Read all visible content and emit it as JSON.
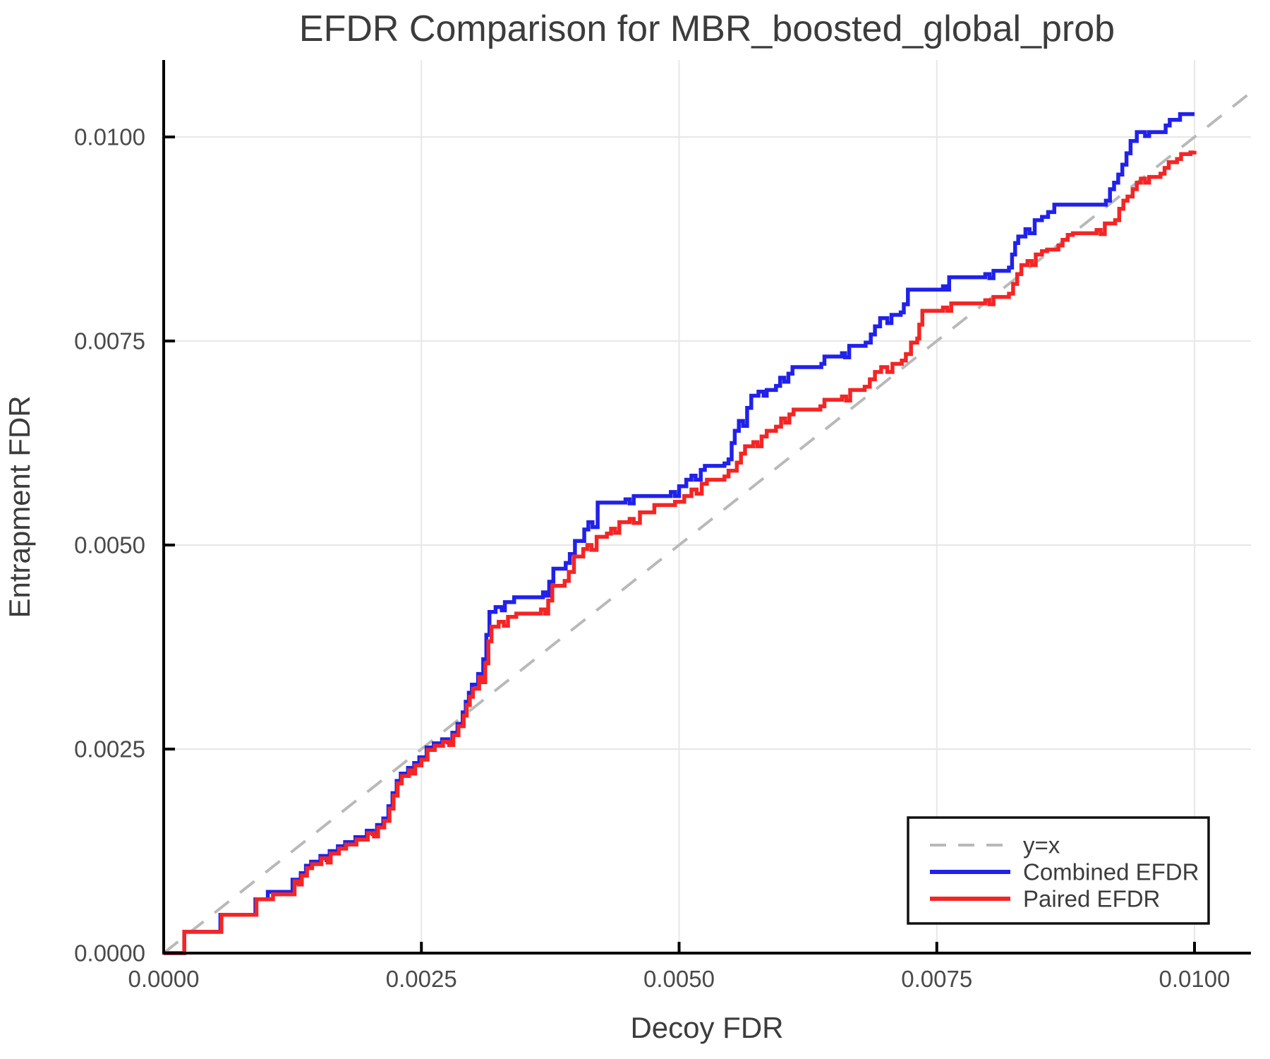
{
  "chart_data": {
    "type": "line",
    "title": "EFDR Comparison for MBR_boosted_global_prob",
    "xlabel": "Decoy FDR",
    "ylabel": "Entrapment FDR",
    "xlim": [
      0,
      0.01055
    ],
    "ylim": [
      0,
      0.01095
    ],
    "grid": true,
    "legend_position": "bottom-right",
    "x_ticks": {
      "values": [
        0,
        0.0025,
        0.005,
        0.0075,
        0.01
      ],
      "labels": [
        "0.0000",
        "0.0025",
        "0.0050",
        "0.0075",
        "0.0100"
      ]
    },
    "y_ticks": {
      "values": [
        0,
        0.0025,
        0.005,
        0.0075,
        0.01
      ],
      "labels": [
        "0.0000",
        "0.0025",
        "0.0050",
        "0.0075",
        "0.0100"
      ]
    },
    "series": [
      {
        "name": "y=x",
        "color": "#b9b9b9",
        "style": "dashed",
        "step": false,
        "points": [
          [
            0,
            0
          ],
          [
            0.01052,
            0.01052
          ]
        ]
      },
      {
        "name": "Combined EFDR",
        "color": "#2121eb",
        "style": "solid",
        "step": true,
        "points": [
          [
            0.0,
            0.0
          ],
          [
            0.0002,
            0.00026
          ],
          [
            0.00055,
            0.00047
          ],
          [
            0.00089,
            0.00066
          ],
          [
            0.00101,
            0.00075
          ],
          [
            0.00125,
            0.0009
          ],
          [
            0.0013,
            0.00086
          ],
          [
            0.00133,
            0.00098
          ],
          [
            0.00138,
            0.00107
          ],
          [
            0.00143,
            0.00112
          ],
          [
            0.00152,
            0.00119
          ],
          [
            0.00158,
            0.00114
          ],
          [
            0.00161,
            0.00125
          ],
          [
            0.00169,
            0.00131
          ],
          [
            0.00176,
            0.00136
          ],
          [
            0.00186,
            0.00142
          ],
          [
            0.00197,
            0.0015
          ],
          [
            0.00203,
            0.00146
          ],
          [
            0.00207,
            0.00157
          ],
          [
            0.00213,
            0.00165
          ],
          [
            0.00218,
            0.0018
          ],
          [
            0.00222,
            0.00196
          ],
          [
            0.00226,
            0.00211
          ],
          [
            0.0023,
            0.0022
          ],
          [
            0.00237,
            0.00227
          ],
          [
            0.0024,
            0.00223
          ],
          [
            0.00243,
            0.00233
          ],
          [
            0.00248,
            0.0024
          ],
          [
            0.00255,
            0.00252
          ],
          [
            0.00262,
            0.00257
          ],
          [
            0.0027,
            0.00262
          ],
          [
            0.00276,
            0.00258
          ],
          [
            0.0028,
            0.0027
          ],
          [
            0.00285,
            0.00281
          ],
          [
            0.0029,
            0.00295
          ],
          [
            0.00293,
            0.00308
          ],
          [
            0.00296,
            0.00319
          ],
          [
            0.00299,
            0.00329
          ],
          [
            0.00305,
            0.00342
          ],
          [
            0.00308,
            0.00336
          ],
          [
            0.0031,
            0.0036
          ],
          [
            0.00313,
            0.0039
          ],
          [
            0.00316,
            0.00418
          ],
          [
            0.00322,
            0.00424
          ],
          [
            0.00328,
            0.0042
          ],
          [
            0.00331,
            0.0043
          ],
          [
            0.0034,
            0.00436
          ],
          [
            0.00368,
            0.00442
          ],
          [
            0.00371,
            0.00438
          ],
          [
            0.00374,
            0.00455
          ],
          [
            0.00378,
            0.00471
          ],
          [
            0.0039,
            0.00478
          ],
          [
            0.00394,
            0.00489
          ],
          [
            0.00399,
            0.00505
          ],
          [
            0.00408,
            0.00519
          ],
          [
            0.00412,
            0.00528
          ],
          [
            0.00416,
            0.00522
          ],
          [
            0.00421,
            0.00552
          ],
          [
            0.00448,
            0.00556
          ],
          [
            0.00452,
            0.00551
          ],
          [
            0.00456,
            0.0056
          ],
          [
            0.00492,
            0.00565
          ],
          [
            0.00496,
            0.0056
          ],
          [
            0.005,
            0.00572
          ],
          [
            0.00507,
            0.0058
          ],
          [
            0.00512,
            0.00585
          ],
          [
            0.00516,
            0.0058
          ],
          [
            0.00521,
            0.00592
          ],
          [
            0.00525,
            0.00597
          ],
          [
            0.00544,
            0.006
          ],
          [
            0.00548,
            0.00605
          ],
          [
            0.00551,
            0.00625
          ],
          [
            0.00554,
            0.0064
          ],
          [
            0.00558,
            0.00652
          ],
          [
            0.00562,
            0.00646
          ],
          [
            0.00566,
            0.00668
          ],
          [
            0.0057,
            0.00683
          ],
          [
            0.00577,
            0.00688
          ],
          [
            0.00582,
            0.00683
          ],
          [
            0.00585,
            0.0069
          ],
          [
            0.00594,
            0.00695
          ],
          [
            0.00598,
            0.00705
          ],
          [
            0.00602,
            0.007
          ],
          [
            0.00606,
            0.0071
          ],
          [
            0.0061,
            0.00718
          ],
          [
            0.00638,
            0.00722
          ],
          [
            0.00641,
            0.00731
          ],
          [
            0.00658,
            0.00735
          ],
          [
            0.00661,
            0.0073
          ],
          [
            0.00665,
            0.00744
          ],
          [
            0.00681,
            0.00748
          ],
          [
            0.00686,
            0.00758
          ],
          [
            0.0069,
            0.00768
          ],
          [
            0.00695,
            0.00778
          ],
          [
            0.00702,
            0.00772
          ],
          [
            0.00706,
            0.00782
          ],
          [
            0.00715,
            0.00785
          ],
          [
            0.00718,
            0.00795
          ],
          [
            0.00722,
            0.00813
          ],
          [
            0.00756,
            0.00817
          ],
          [
            0.00759,
            0.00813
          ],
          [
            0.00762,
            0.00828
          ],
          [
            0.00797,
            0.00832
          ],
          [
            0.00801,
            0.00827
          ],
          [
            0.00805,
            0.00836
          ],
          [
            0.0082,
            0.0084
          ],
          [
            0.00823,
            0.00856
          ],
          [
            0.00826,
            0.0087
          ],
          [
            0.00829,
            0.00878
          ],
          [
            0.00836,
            0.00887
          ],
          [
            0.0084,
            0.00882
          ],
          [
            0.00845,
            0.00898
          ],
          [
            0.00852,
            0.00902
          ],
          [
            0.00858,
            0.00908
          ],
          [
            0.00864,
            0.00917
          ],
          [
            0.00914,
            0.00922
          ],
          [
            0.00918,
            0.00936
          ],
          [
            0.00922,
            0.00944
          ],
          [
            0.00926,
            0.00954
          ],
          [
            0.0093,
            0.00966
          ],
          [
            0.00934,
            0.0098
          ],
          [
            0.00938,
            0.00995
          ],
          [
            0.00944,
            0.01006
          ],
          [
            0.00952,
            0.01001
          ],
          [
            0.00956,
            0.01006
          ],
          [
            0.00972,
            0.01014
          ],
          [
            0.00976,
            0.01021
          ],
          [
            0.00986,
            0.01028
          ],
          [
            0.01,
            0.01028
          ]
        ]
      },
      {
        "name": "Paired EFDR",
        "color": "#f42525",
        "style": "solid",
        "step": true,
        "points": [
          [
            0.0,
            0.0
          ],
          [
            0.0002,
            0.00026
          ],
          [
            0.00056,
            0.00047
          ],
          [
            0.0009,
            0.00066
          ],
          [
            0.00106,
            0.00072
          ],
          [
            0.00127,
            0.00088
          ],
          [
            0.00131,
            0.00084
          ],
          [
            0.00134,
            0.00095
          ],
          [
            0.00139,
            0.00104
          ],
          [
            0.00144,
            0.00109
          ],
          [
            0.00153,
            0.00116
          ],
          [
            0.00159,
            0.00111
          ],
          [
            0.00162,
            0.00122
          ],
          [
            0.0017,
            0.00128
          ],
          [
            0.00177,
            0.00133
          ],
          [
            0.00187,
            0.00139
          ],
          [
            0.00198,
            0.00147
          ],
          [
            0.00204,
            0.00143
          ],
          [
            0.00208,
            0.00154
          ],
          [
            0.00214,
            0.00162
          ],
          [
            0.00219,
            0.00177
          ],
          [
            0.00223,
            0.00193
          ],
          [
            0.00227,
            0.00208
          ],
          [
            0.00231,
            0.00217
          ],
          [
            0.00238,
            0.00224
          ],
          [
            0.00241,
            0.0022
          ],
          [
            0.00244,
            0.0023
          ],
          [
            0.0025,
            0.00237
          ],
          [
            0.00256,
            0.00249
          ],
          [
            0.00263,
            0.00254
          ],
          [
            0.00271,
            0.00259
          ],
          [
            0.00277,
            0.00255
          ],
          [
            0.00281,
            0.00267
          ],
          [
            0.00286,
            0.00278
          ],
          [
            0.00291,
            0.00291
          ],
          [
            0.00294,
            0.00304
          ],
          [
            0.00297,
            0.00314
          ],
          [
            0.003,
            0.00324
          ],
          [
            0.00306,
            0.00338
          ],
          [
            0.00309,
            0.00332
          ],
          [
            0.00312,
            0.00355
          ],
          [
            0.00315,
            0.00382
          ],
          [
            0.00318,
            0.004
          ],
          [
            0.00325,
            0.00406
          ],
          [
            0.0033,
            0.00401
          ],
          [
            0.00334,
            0.00412
          ],
          [
            0.00342,
            0.00416
          ],
          [
            0.00366,
            0.00421
          ],
          [
            0.0037,
            0.00416
          ],
          [
            0.00373,
            0.00432
          ],
          [
            0.00377,
            0.0045
          ],
          [
            0.00389,
            0.00456
          ],
          [
            0.00393,
            0.00467
          ],
          [
            0.00398,
            0.00486
          ],
          [
            0.00407,
            0.00495
          ],
          [
            0.00411,
            0.005
          ],
          [
            0.00415,
            0.00494
          ],
          [
            0.0042,
            0.0051
          ],
          [
            0.0043,
            0.00514
          ],
          [
            0.00434,
            0.0052
          ],
          [
            0.00438,
            0.00515
          ],
          [
            0.00442,
            0.00528
          ],
          [
            0.00452,
            0.00532
          ],
          [
            0.00456,
            0.00527
          ],
          [
            0.00462,
            0.0054
          ],
          [
            0.00476,
            0.00549
          ],
          [
            0.00496,
            0.00553
          ],
          [
            0.00505,
            0.0056
          ],
          [
            0.00512,
            0.00568
          ],
          [
            0.00517,
            0.00563
          ],
          [
            0.00522,
            0.00575
          ],
          [
            0.00527,
            0.0058
          ],
          [
            0.00544,
            0.00584
          ],
          [
            0.00548,
            0.00591
          ],
          [
            0.00556,
            0.00601
          ],
          [
            0.0056,
            0.00612
          ],
          [
            0.00564,
            0.00621
          ],
          [
            0.00572,
            0.00626
          ],
          [
            0.00576,
            0.00621
          ],
          [
            0.0058,
            0.00633
          ],
          [
            0.00585,
            0.0064
          ],
          [
            0.00594,
            0.00645
          ],
          [
            0.00599,
            0.00655
          ],
          [
            0.00603,
            0.0065
          ],
          [
            0.00607,
            0.0066
          ],
          [
            0.00611,
            0.00666
          ],
          [
            0.00637,
            0.0067
          ],
          [
            0.00641,
            0.00678
          ],
          [
            0.00658,
            0.00682
          ],
          [
            0.00662,
            0.00677
          ],
          [
            0.00666,
            0.0069
          ],
          [
            0.0068,
            0.00694
          ],
          [
            0.00685,
            0.00703
          ],
          [
            0.0069,
            0.00712
          ],
          [
            0.00696,
            0.00718
          ],
          [
            0.00702,
            0.00712
          ],
          [
            0.00707,
            0.00722
          ],
          [
            0.00716,
            0.00726
          ],
          [
            0.0072,
            0.00734
          ],
          [
            0.00725,
            0.00748
          ],
          [
            0.00731,
            0.00753
          ],
          [
            0.00733,
            0.0077
          ],
          [
            0.00736,
            0.00787
          ],
          [
            0.00756,
            0.00791
          ],
          [
            0.0076,
            0.00787
          ],
          [
            0.00764,
            0.00796
          ],
          [
            0.00797,
            0.008
          ],
          [
            0.00801,
            0.00795
          ],
          [
            0.00805,
            0.00804
          ],
          [
            0.0082,
            0.00808
          ],
          [
            0.00824,
            0.0082
          ],
          [
            0.00828,
            0.00832
          ],
          [
            0.00832,
            0.00843
          ],
          [
            0.00838,
            0.00848
          ],
          [
            0.00842,
            0.00843
          ],
          [
            0.00846,
            0.00856
          ],
          [
            0.00852,
            0.0086
          ],
          [
            0.00857,
            0.00862
          ],
          [
            0.00868,
            0.00867
          ],
          [
            0.00872,
            0.00874
          ],
          [
            0.00877,
            0.0088
          ],
          [
            0.00882,
            0.00882
          ],
          [
            0.00905,
            0.00886
          ],
          [
            0.00909,
            0.00881
          ],
          [
            0.00913,
            0.00894
          ],
          [
            0.00923,
            0.00898
          ],
          [
            0.00927,
            0.00912
          ],
          [
            0.00931,
            0.00922
          ],
          [
            0.00935,
            0.00927
          ],
          [
            0.0094,
            0.00936
          ],
          [
            0.00944,
            0.00944
          ],
          [
            0.00948,
            0.00949
          ],
          [
            0.00952,
            0.00944
          ],
          [
            0.00956,
            0.00951
          ],
          [
            0.00967,
            0.00955
          ],
          [
            0.00971,
            0.00962
          ],
          [
            0.00975,
            0.00969
          ],
          [
            0.00983,
            0.00973
          ],
          [
            0.00987,
            0.00979
          ],
          [
            0.00996,
            0.00981
          ],
          [
            0.01,
            0.00983
          ]
        ]
      }
    ]
  }
}
